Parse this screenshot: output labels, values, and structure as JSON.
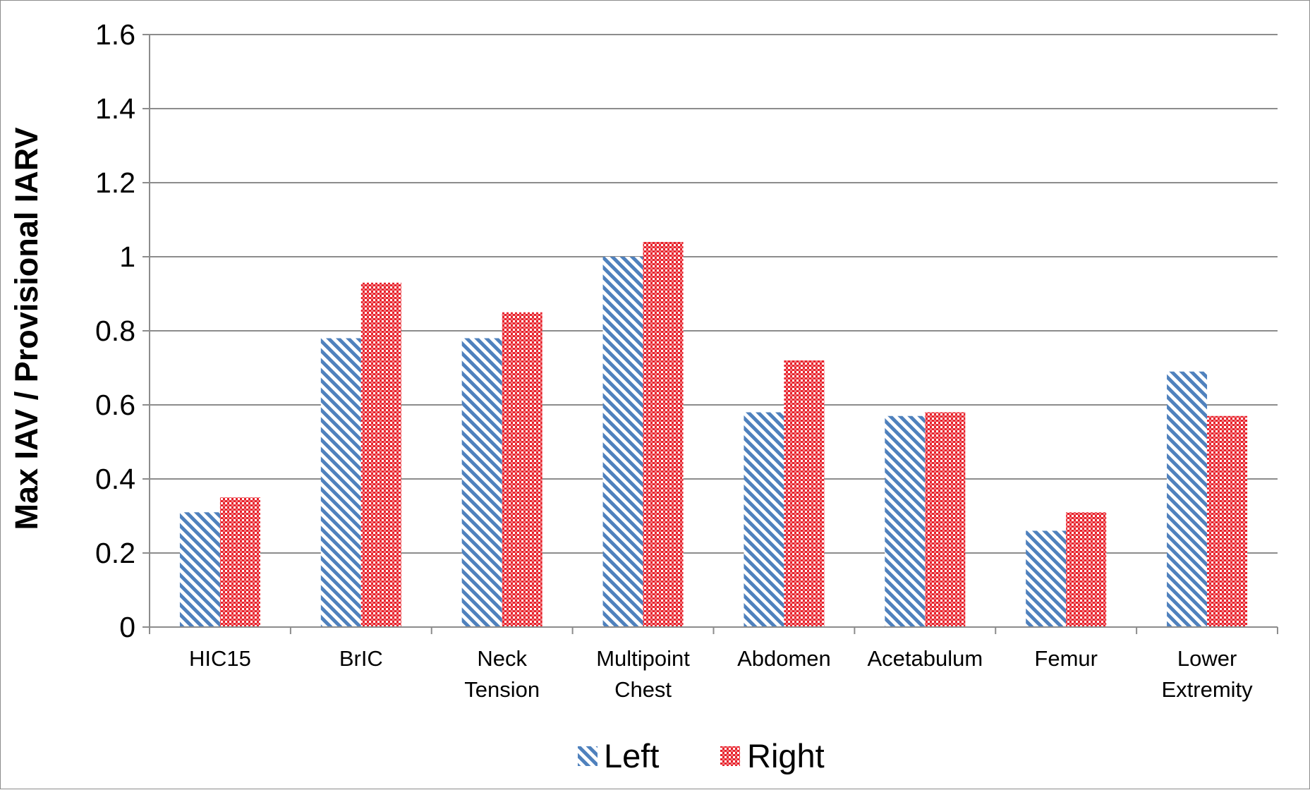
{
  "chart_data": {
    "type": "bar",
    "title": "",
    "xlabel": "",
    "ylabel": "Max IAV / Provisional IARV",
    "ylim": [
      0,
      1.6
    ],
    "yticks": [
      "0",
      "0.2",
      "0.4",
      "0.6",
      "0.8",
      "1",
      "1.2",
      "1.4",
      "1.6"
    ],
    "ytick_values": [
      0,
      0.2,
      0.4,
      0.6,
      0.8,
      1,
      1.2,
      1.4,
      1.6
    ],
    "grid": true,
    "legend_position": "bottom",
    "categories": [
      [
        "HIC15"
      ],
      [
        "BrIC"
      ],
      [
        "Neck",
        "Tension"
      ],
      [
        "Multipoint",
        "Chest"
      ],
      [
        "Abdomen"
      ],
      [
        "Acetabulum"
      ],
      [
        "Femur"
      ],
      [
        "Lower",
        "Extremity"
      ]
    ],
    "series": [
      {
        "name": "Left",
        "color": "#4f81bd",
        "pattern": "diagonal-stripes",
        "values": [
          0.31,
          0.78,
          0.78,
          1.0,
          0.58,
          0.57,
          0.26,
          0.69
        ]
      },
      {
        "name": "Right",
        "color": "#e8202a",
        "pattern": "checkerboard",
        "values": [
          0.35,
          0.93,
          0.85,
          1.04,
          0.72,
          0.58,
          0.31,
          0.57
        ]
      }
    ]
  }
}
